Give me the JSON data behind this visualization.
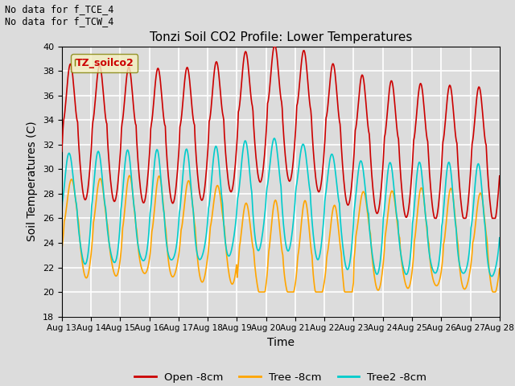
{
  "title": "Tonzi Soil CO2 Profile: Lower Temperatures",
  "xlabel": "Time",
  "ylabel": "Soil Temperatures (C)",
  "ylim": [
    18,
    40
  ],
  "yticks": [
    18,
    20,
    22,
    24,
    26,
    28,
    30,
    32,
    34,
    36,
    38,
    40
  ],
  "background_color": "#dcdcdc",
  "plot_bg_color": "#dcdcdc",
  "grid_color": "white",
  "annotation_text": "No data for f_TCE_4\nNo data for f_TCW_4",
  "legend_label_text": "TZ_soilco2",
  "colors": {
    "open": "#cc0000",
    "tree": "#ffa500",
    "tree2": "#00cccc"
  },
  "legend_labels": [
    "Open -8cm",
    "Tree -8cm",
    "Tree2 -8cm"
  ],
  "n_points": 720
}
